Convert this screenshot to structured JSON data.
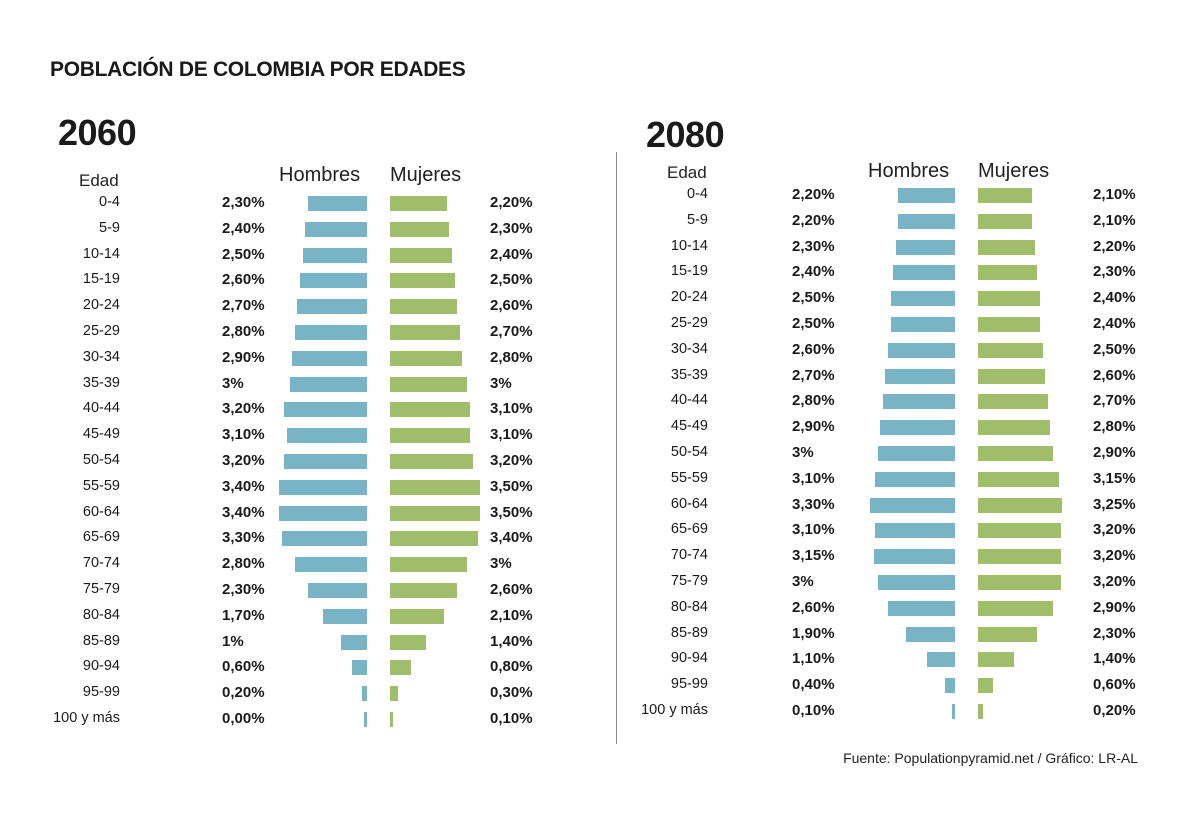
{
  "title": "POBLACIÓN DE COLOMBIA POR EDADES",
  "source": "Fuente: Populationpyramid.net / Gráfico: LR-AL",
  "colors": {
    "hombres": "#78b4c6",
    "mujeres": "#9fbd6b",
    "divider": "#8c8c8c"
  },
  "chart_data": [
    {
      "type": "bar",
      "orientation": "horizontal-pyramid",
      "title": "2060",
      "category_header": "Edad",
      "categories": [
        "0-4",
        "5-9",
        "10-14",
        "15-19",
        "20-24",
        "25-29",
        "30-34",
        "35-39",
        "40-44",
        "45-49",
        "50-54",
        "55-59",
        "60-64",
        "65-69",
        "70-74",
        "75-79",
        "80-84",
        "85-89",
        "90-94",
        "95-99",
        "100 y más"
      ],
      "series": [
        {
          "name": "Hombres",
          "values": [
            2.3,
            2.4,
            2.5,
            2.6,
            2.7,
            2.8,
            2.9,
            3.0,
            3.2,
            3.1,
            3.2,
            3.4,
            3.4,
            3.3,
            2.8,
            2.3,
            1.7,
            1.0,
            0.6,
            0.2,
            0.0
          ],
          "labels": [
            "2,30%",
            "2,40%",
            "2,50%",
            "2,60%",
            "2,70%",
            "2,80%",
            "2,90%",
            "3%",
            "3,20%",
            "3,10%",
            "3,20%",
            "3,40%",
            "3,40%",
            "3,30%",
            "2,80%",
            "2,30%",
            "1,70%",
            "1%",
            "0,60%",
            "0,20%",
            "0,00%"
          ]
        },
        {
          "name": "Mujeres",
          "values": [
            2.2,
            2.3,
            2.4,
            2.5,
            2.6,
            2.7,
            2.8,
            3.0,
            3.1,
            3.1,
            3.2,
            3.5,
            3.5,
            3.4,
            3.0,
            2.6,
            2.1,
            1.4,
            0.8,
            0.3,
            0.1
          ],
          "labels": [
            "2,20%",
            "2,30%",
            "2,40%",
            "2,50%",
            "2,60%",
            "2,70%",
            "2,80%",
            "3%",
            "3,10%",
            "3,10%",
            "3,20%",
            "3,50%",
            "3,50%",
            "3,40%",
            "3%",
            "2,60%",
            "2,10%",
            "1,40%",
            "0,80%",
            "0,30%",
            "0,10%"
          ]
        }
      ],
      "unit": "%"
    },
    {
      "type": "bar",
      "orientation": "horizontal-pyramid",
      "title": "2080",
      "category_header": "Edad",
      "categories": [
        "0-4",
        "5-9",
        "10-14",
        "15-19",
        "20-24",
        "25-29",
        "30-34",
        "35-39",
        "40-44",
        "45-49",
        "50-54",
        "55-59",
        "60-64",
        "65-69",
        "70-74",
        "75-79",
        "80-84",
        "85-89",
        "90-94",
        "95-99",
        "100 y más"
      ],
      "series": [
        {
          "name": "Hombres",
          "values": [
            2.2,
            2.2,
            2.3,
            2.4,
            2.5,
            2.5,
            2.6,
            2.7,
            2.8,
            2.9,
            3.0,
            3.1,
            3.3,
            3.1,
            3.15,
            3.0,
            2.6,
            1.9,
            1.1,
            0.4,
            0.1
          ],
          "labels": [
            "2,20%",
            "2,20%",
            "2,30%",
            "2,40%",
            "2,50%",
            "2,50%",
            "2,60%",
            "2,70%",
            "2,80%",
            "2,90%",
            "3%",
            "3,10%",
            "3,30%",
            "3,10%",
            "3,15%",
            "3%",
            "2,60%",
            "1,90%",
            "1,10%",
            "0,40%",
            "0,10%"
          ]
        },
        {
          "name": "Mujeres",
          "values": [
            2.1,
            2.1,
            2.2,
            2.3,
            2.4,
            2.4,
            2.5,
            2.6,
            2.7,
            2.8,
            2.9,
            3.15,
            3.25,
            3.2,
            3.2,
            3.2,
            2.9,
            2.3,
            1.4,
            0.6,
            0.2
          ],
          "labels": [
            "2,10%",
            "2,10%",
            "2,20%",
            "2,30%",
            "2,40%",
            "2,40%",
            "2,50%",
            "2,60%",
            "2,70%",
            "2,80%",
            "2,90%",
            "3,15%",
            "3,25%",
            "3,20%",
            "3,20%",
            "3,20%",
            "2,90%",
            "2,30%",
            "1,40%",
            "0,60%",
            "0,20%"
          ]
        }
      ],
      "unit": "%"
    }
  ]
}
